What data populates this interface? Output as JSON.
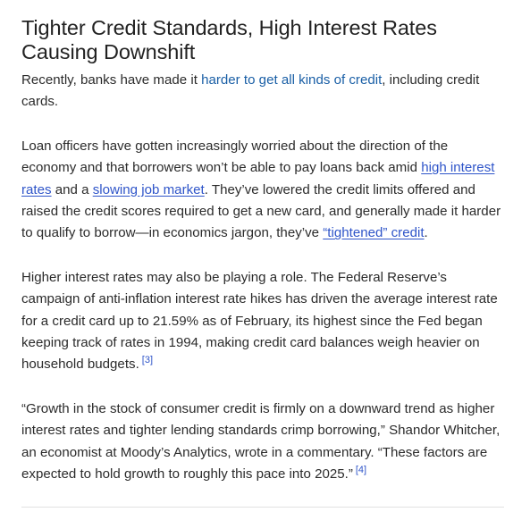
{
  "article": {
    "heading": "Tighter Credit Standards, High Interest Rates Causing Downshift",
    "intro": {
      "before": "Recently, banks have made it ",
      "link": "harder to get all kinds of credit",
      "after": ", including credit cards."
    },
    "paragraph2": {
      "part1": "Loan officers have gotten increasingly worried about the direction of the economy and that borrowers won’t be able to pay loans back amid ",
      "link1": "high interest rates",
      "part2": " and a ",
      "link2": "slowing job market",
      "part3": ". They’ve lowered the credit limits offered and raised the credit scores required to get a new card, and generally made it harder to qualify to borrow—in economics jargon, they’ve ",
      "link3": "“tightened” credit",
      "part4": "."
    },
    "paragraph3": {
      "text": "Higher interest rates may also be playing a role. The Federal Reserve’s campaign of anti-inflation interest rate hikes has driven the average interest rate for a credit card up to 21.59% as of February, its highest since the Fed began keeping track of rates in 1994, making credit card balances weigh heavier on household budgets.",
      "ref": "[3]"
    },
    "paragraph4": {
      "text": "“Growth in the stock of consumer credit is firmly on a downward trend as higher interest rates and tighter lending standards crimp borrowing,” Shandor Whitcher, an economist at Moody’s Analytics, wrote in a commentary. “These factors are expected to hold growth to roughly this pace into 2025.”",
      "ref": "[4]"
    }
  }
}
